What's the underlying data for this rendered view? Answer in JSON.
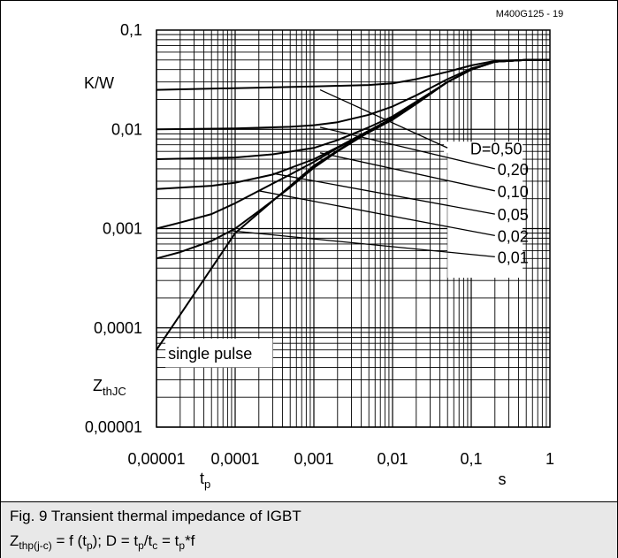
{
  "chart_data": {
    "type": "line",
    "code_label": "M400G125 - 19",
    "xscale": "log",
    "yscale": "log",
    "xlim": [
      1e-05,
      1
    ],
    "ylim": [
      1e-05,
      0.1
    ],
    "x_ticks": [
      "0,00001",
      "0,0001",
      "0,001",
      "0,01",
      "0,1",
      "1"
    ],
    "y_ticks": [
      "0,1",
      "0,01",
      "0,001",
      "0,0001",
      "0,00001"
    ],
    "x_unit": "s",
    "x_name": "t",
    "x_name_sub": "p",
    "y_unit": "K/W",
    "y_name": "Z",
    "y_name_sub": "thJC",
    "grid": true,
    "series": [
      {
        "name": "D=0,50",
        "x": [
          1e-05,
          0.0001,
          0.001,
          0.005,
          0.01,
          0.02,
          0.05,
          0.1,
          0.2,
          0.5,
          1
        ],
        "y": [
          0.025,
          0.026,
          0.027,
          0.028,
          0.029,
          0.032,
          0.038,
          0.044,
          0.049,
          0.05,
          0.05
        ]
      },
      {
        "name": "0,20",
        "x": [
          1e-05,
          0.0001,
          0.0005,
          0.001,
          0.002,
          0.005,
          0.01,
          0.02,
          0.05,
          0.1,
          0.2,
          0.5,
          1
        ],
        "y": [
          0.01,
          0.0102,
          0.0106,
          0.011,
          0.0118,
          0.014,
          0.017,
          0.022,
          0.032,
          0.041,
          0.048,
          0.05,
          0.05
        ]
      },
      {
        "name": "0,10",
        "x": [
          1e-05,
          0.0001,
          0.0003,
          0.001,
          0.002,
          0.005,
          0.01,
          0.02,
          0.05,
          0.1,
          0.2,
          0.5,
          1
        ],
        "y": [
          0.005,
          0.0052,
          0.0056,
          0.0065,
          0.0078,
          0.0105,
          0.0135,
          0.019,
          0.03,
          0.04,
          0.048,
          0.05,
          0.05
        ]
      },
      {
        "name": "0,05",
        "x": [
          1e-05,
          5e-05,
          0.0001,
          0.0003,
          0.001,
          0.002,
          0.005,
          0.01,
          0.02,
          0.05,
          0.1,
          0.2,
          0.5,
          1
        ],
        "y": [
          0.0025,
          0.0027,
          0.0029,
          0.0035,
          0.005,
          0.0066,
          0.0097,
          0.013,
          0.0185,
          0.03,
          0.04,
          0.048,
          0.05,
          0.05
        ]
      },
      {
        "name": "0,02",
        "x": [
          1e-05,
          2e-05,
          5e-05,
          0.0001,
          0.0002,
          0.0005,
          0.001,
          0.002,
          0.005,
          0.01,
          0.02,
          0.05,
          0.1,
          0.2,
          0.5,
          1
        ],
        "y": [
          0.001,
          0.00115,
          0.0014,
          0.0018,
          0.0024,
          0.0035,
          0.0047,
          0.0065,
          0.0096,
          0.013,
          0.0185,
          0.03,
          0.04,
          0.048,
          0.05,
          0.05
        ]
      },
      {
        "name": "0,01",
        "x": [
          1e-05,
          2e-05,
          5e-05,
          0.0001,
          0.0002,
          0.0005,
          0.001,
          0.002,
          0.005,
          0.01,
          0.02,
          0.05,
          0.1,
          0.2,
          0.5,
          1
        ],
        "y": [
          0.0005,
          0.00058,
          0.00075,
          0.001,
          0.0015,
          0.0026,
          0.0041,
          0.006,
          0.0094,
          0.013,
          0.0185,
          0.03,
          0.04,
          0.048,
          0.05,
          0.05
        ]
      },
      {
        "name": "single pulse",
        "x": [
          1e-05,
          0.0001,
          0.001,
          0.003,
          0.01,
          0.02,
          0.05,
          0.1,
          0.2,
          0.5,
          1
        ],
        "y": [
          6e-05,
          0.0009,
          0.0043,
          0.0075,
          0.0125,
          0.018,
          0.03,
          0.04,
          0.048,
          0.05,
          0.05
        ]
      }
    ],
    "leaders": [
      {
        "label": "D=0,50",
        "from": [
          0.0012,
          0.025
        ],
        "to": [
          0.05,
          0.0065
        ]
      },
      {
        "label": "0,20",
        "from": [
          0.0012,
          0.0105
        ],
        "to": [
          0.2,
          0.004
        ]
      },
      {
        "label": "0,10",
        "from": [
          0.0012,
          0.0058
        ],
        "to": [
          0.2,
          0.0024
        ]
      },
      {
        "label": "0,05",
        "from": [
          0.0003,
          0.0036
        ],
        "to": [
          0.2,
          0.0014
        ]
      },
      {
        "label": "0,02",
        "from": [
          0.0002,
          0.0024
        ],
        "to": [
          0.2,
          0.00085
        ]
      },
      {
        "label": "0,01",
        "from": [
          9e-05,
          0.00095
        ],
        "to": [
          0.2,
          0.00052
        ]
      }
    ],
    "curve_labels": [
      "D=0,50",
      "0,20",
      "0,10",
      "0,05",
      "0,02",
      "0,01"
    ],
    "annotation": "single pulse"
  },
  "caption": {
    "line1": "Fig. 9 Transient thermal impedance of IGBT",
    "z": "Z",
    "z_sub": "thp(j-c)",
    "mid1": " = f (t",
    "tp_sub1": "p",
    "mid2": "); D = t",
    "tp_sub2": "p",
    "mid3": "/t",
    "tc_sub": "c",
    "mid4": " = t",
    "tp_sub3": "p",
    "tail": "*f"
  }
}
